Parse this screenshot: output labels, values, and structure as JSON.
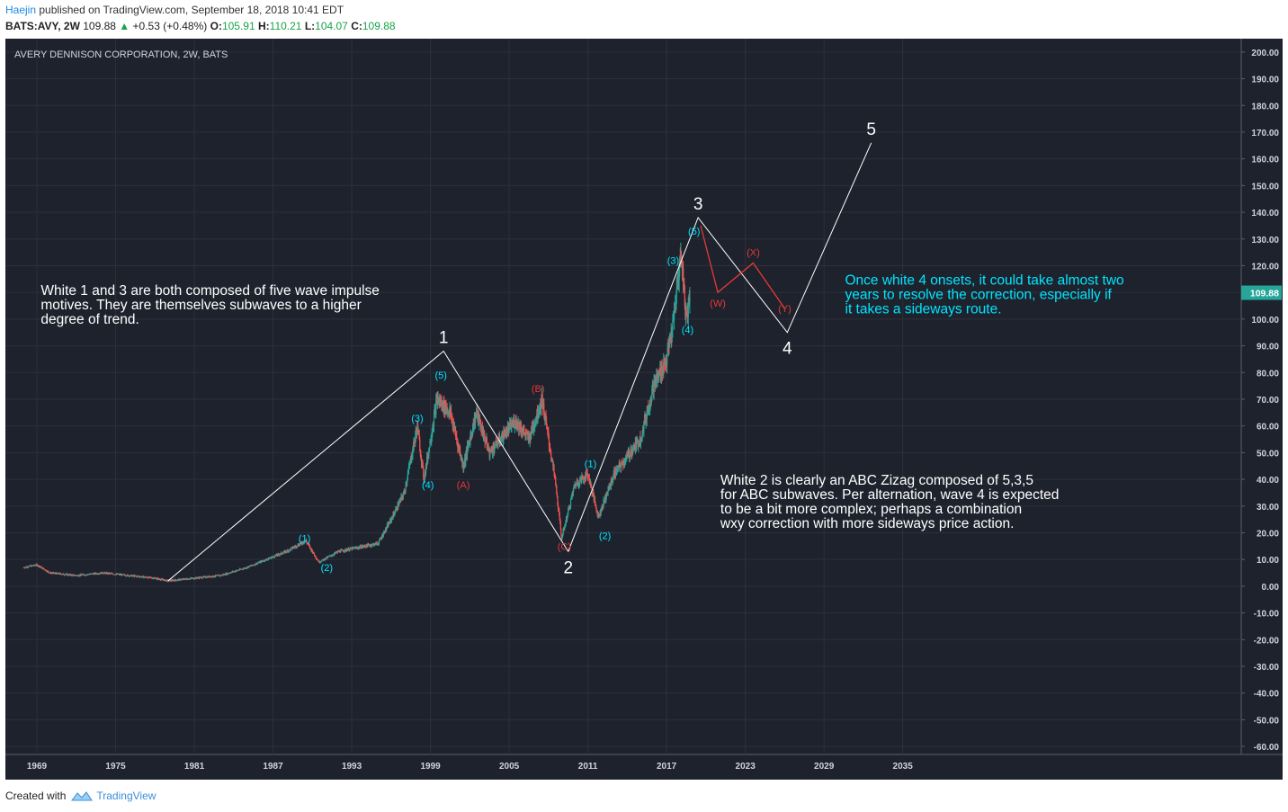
{
  "header": {
    "author": "Haejin",
    "published_text": "published on TradingView.com, September 18, 2018 10:41 EDT",
    "symbol": "BATS:AVY, 2W",
    "last": "109.88",
    "change": "+0.53 (+0.48%)",
    "o_label": "O:",
    "o_value": "105.91",
    "h_label": "H:",
    "h_value": "110.21",
    "l_label": "L:",
    "l_value": "104.07",
    "c_label": "C:",
    "c_value": "109.88"
  },
  "footer": {
    "created_with": "Created with",
    "brand": "TradingView"
  },
  "colors": {
    "background": "#1e222d",
    "grid": "#2c303b",
    "text": "#d1d4dc",
    "white_wave": "#ffffff",
    "cyan": "#00e5ff",
    "red": "#e53935",
    "candle_up": "#26a69a",
    "candle_down": "#ef5350",
    "price_tag": "#26a69a"
  },
  "chart_data": {
    "type": "candlestick",
    "title": "AVERY DENNISON CORPORATION, 2W, BATS",
    "ylim": [
      -63,
      205
    ],
    "y_ticks": [
      200,
      190,
      180,
      170,
      160,
      150,
      140,
      130,
      120,
      110,
      100,
      90,
      80,
      70,
      60,
      50,
      40,
      30,
      20,
      10,
      0,
      -10,
      -20,
      -30,
      -40,
      -50,
      -60
    ],
    "x_tick_labels": [
      "1969",
      "1975",
      "1981",
      "1987",
      "1993",
      "1999",
      "2005",
      "2011",
      "2017",
      "2023",
      "2029",
      "2035"
    ],
    "x_tick_years": [
      1969,
      1975,
      1981,
      1987,
      1993,
      1999,
      2005,
      2011,
      2017,
      2023,
      2029,
      2035
    ],
    "xlim": [
      1966.6,
      2060.8
    ],
    "last_price": "109.88",
    "price_path": [
      [
        1968.0,
        7
      ],
      [
        1969.0,
        8
      ],
      [
        1970.0,
        5
      ],
      [
        1972.0,
        4
      ],
      [
        1974.0,
        5
      ],
      [
        1976.0,
        4
      ],
      [
        1978.0,
        3
      ],
      [
        1979.0,
        2
      ],
      [
        1981.0,
        3
      ],
      [
        1983.0,
        4
      ],
      [
        1985.0,
        7
      ],
      [
        1987.0,
        11
      ],
      [
        1988.0,
        13
      ],
      [
        1989.5,
        17
      ],
      [
        1990.5,
        9
      ],
      [
        1992.0,
        13
      ],
      [
        1995.0,
        16
      ],
      [
        1996.0,
        25
      ],
      [
        1997.0,
        35
      ],
      [
        1998.0,
        60
      ],
      [
        1998.5,
        40
      ],
      [
        1999.5,
        70
      ],
      [
        2000.5,
        65
      ],
      [
        2001.5,
        45
      ],
      [
        2002.5,
        65
      ],
      [
        2003.5,
        50
      ],
      [
        2005.5,
        62
      ],
      [
        2006.5,
        55
      ],
      [
        2007.5,
        70
      ],
      [
        2008.5,
        40
      ],
      [
        2009.0,
        18
      ],
      [
        2010.0,
        38
      ],
      [
        2011.0,
        42
      ],
      [
        2011.8,
        26
      ],
      [
        2013.0,
        42
      ],
      [
        2015.0,
        55
      ],
      [
        2016.0,
        75
      ],
      [
        2017.0,
        85
      ],
      [
        2017.5,
        98
      ],
      [
        2018.1,
        125
      ],
      [
        2018.5,
        100
      ],
      [
        2018.8,
        109.88
      ]
    ],
    "white_waves": {
      "points": [
        [
          1979.0,
          2
        ],
        [
          2000.0,
          88
        ],
        [
          2009.5,
          13
        ],
        [
          2019.4,
          138
        ],
        [
          2026.2,
          95
        ],
        [
          2032.6,
          166
        ]
      ],
      "labels": [
        {
          "text": "1",
          "x": 2000.0,
          "y": 88
        },
        {
          "text": "2",
          "x": 2009.5,
          "y": 13
        },
        {
          "text": "3",
          "x": 2019.4,
          "y": 138
        },
        {
          "text": "4",
          "x": 2026.2,
          "y": 95
        },
        {
          "text": "5",
          "x": 2032.6,
          "y": 166
        }
      ]
    },
    "red_wxy": {
      "points": [
        [
          2019.6,
          135
        ],
        [
          2020.9,
          110
        ],
        [
          2023.6,
          121
        ],
        [
          2026.0,
          104
        ]
      ],
      "labels": [
        {
          "text": "(W)",
          "x": 2020.9,
          "y": 110
        },
        {
          "text": "(X)",
          "x": 2023.6,
          "y": 121
        },
        {
          "text": "(Y)",
          "x": 2026.0,
          "y": 104
        }
      ]
    },
    "cyan_labels": [
      {
        "text": "(1)",
        "x": 1989.4,
        "y": 18
      },
      {
        "text": "(2)",
        "x": 1991.1,
        "y": 7
      },
      {
        "text": "(3)",
        "x": 1998.0,
        "y": 63
      },
      {
        "text": "(4)",
        "x": 1998.8,
        "y": 38
      },
      {
        "text": "(5)",
        "x": 1999.8,
        "y": 79
      },
      {
        "text": "(1)",
        "x": 2011.2,
        "y": 46
      },
      {
        "text": "(2)",
        "x": 2012.3,
        "y": 19
      },
      {
        "text": "(3)",
        "x": 2017.5,
        "y": 122
      },
      {
        "text": "(4)",
        "x": 2018.6,
        "y": 96
      },
      {
        "text": "(5)",
        "x": 2019.1,
        "y": 133
      }
    ],
    "red_labels": [
      {
        "text": "(A)",
        "x": 2001.5,
        "y": 38
      },
      {
        "text": "(B)",
        "x": 2007.2,
        "y": 74
      },
      {
        "text": "(C)",
        "x": 2009.2,
        "y": 15
      }
    ],
    "annotations": [
      {
        "lines": [
          "White 1 and 3 are both composed of five wave impulse",
          "motives. They are themselves subwaves to a higher",
          "degree of trend."
        ],
        "x": 1969.3,
        "y": 109,
        "color": "white"
      },
      {
        "lines": [
          "Once white 4 onsets, it could take almost two",
          "years to resolve the correction, especially if",
          "it takes a sideways route."
        ],
        "x": 2030.6,
        "y": 113,
        "color": "cyan"
      },
      {
        "lines": [
          "White 2 is clearly an ABC Zizag composed of 5,3,5",
          "for ABC subwaves. Per alternation, wave 4 is expected",
          "to be a bit more complex; perhaps a combination",
          "wxy correction with more sideways price action."
        ],
        "x": 2021.1,
        "y": 38,
        "color": "white"
      }
    ]
  }
}
